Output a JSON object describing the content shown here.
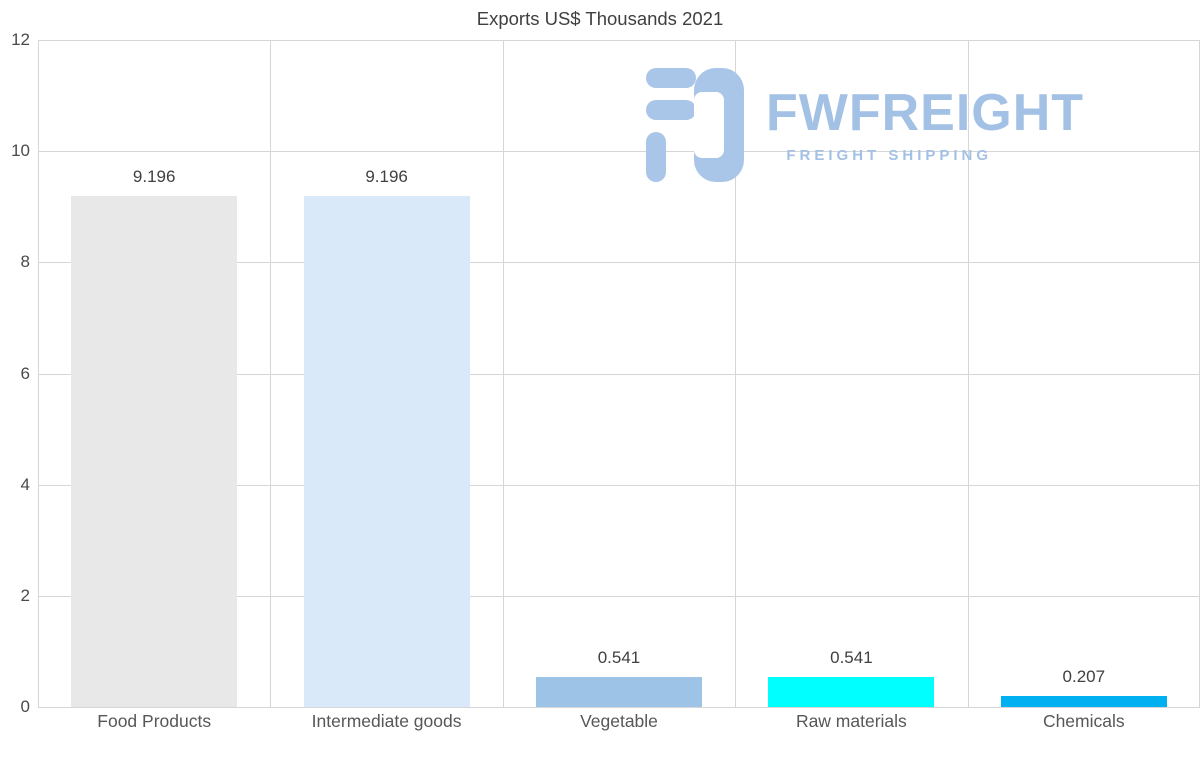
{
  "chart_data": {
    "type": "bar",
    "title": "Exports US$ Thousands 2021",
    "categories": [
      "Food Products",
      "Intermediate goods",
      "Vegetable",
      "Raw materials",
      "Chemicals"
    ],
    "values": [
      9.196,
      9.196,
      0.541,
      0.541,
      0.207
    ],
    "value_labels": [
      "9.196",
      "9.196",
      "0.541",
      "0.541",
      "0.207"
    ],
    "bar_colors": [
      "#e8e8e8",
      "#d9e9f9",
      "#9dc3e6",
      "#00ffff",
      "#00b0f0"
    ],
    "xlabel": "",
    "ylabel": "",
    "ylim": [
      0,
      12
    ],
    "yticks": [
      0,
      2,
      4,
      6,
      8,
      10,
      12
    ],
    "grid": true,
    "legend": false,
    "gridline_color": "#d6d6d6"
  },
  "watermark": {
    "brand": "FWFREIGHT",
    "tagline": "FREIGHT SHIPPING",
    "color": "#a3c1e4"
  }
}
